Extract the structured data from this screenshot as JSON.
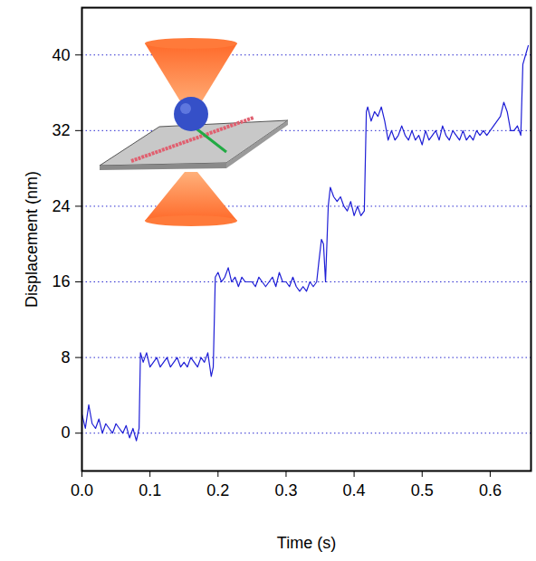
{
  "chart_data": {
    "type": "line",
    "xlabel": "Time (s)",
    "ylabel": "Displacement (nm)",
    "color": "#1f1fd6",
    "grid": true,
    "xlim": [
      0,
      0.66
    ],
    "xticks": [
      {
        "value": 0,
        "label": "0.0"
      },
      {
        "value": 0.1,
        "label": "0.1"
      },
      {
        "value": 0.2,
        "label": "0.2"
      },
      {
        "value": 0.3,
        "label": "0.3"
      },
      {
        "value": 0.4,
        "label": "0.4"
      },
      {
        "value": 0.5,
        "label": "0.5"
      },
      {
        "value": 0.6,
        "label": "0.6"
      }
    ],
    "ylim": [
      -4,
      45
    ],
    "yticks": [
      0,
      8,
      16,
      24,
      32,
      40
    ],
    "x": [
      0,
      0.005,
      0.01,
      0.015,
      0.02,
      0.025,
      0.03,
      0.035,
      0.04,
      0.045,
      0.05,
      0.055,
      0.06,
      0.065,
      0.07,
      0.075,
      0.08,
      0.084,
      0.086,
      0.09,
      0.095,
      0.1,
      0.105,
      0.11,
      0.115,
      0.12,
      0.125,
      0.13,
      0.135,
      0.14,
      0.145,
      0.15,
      0.155,
      0.16,
      0.165,
      0.17,
      0.175,
      0.18,
      0.185,
      0.19,
      0.193,
      0.196,
      0.2,
      0.205,
      0.21,
      0.215,
      0.22,
      0.225,
      0.23,
      0.235,
      0.24,
      0.25,
      0.255,
      0.26,
      0.265,
      0.27,
      0.275,
      0.28,
      0.285,
      0.29,
      0.295,
      0.3,
      0.305,
      0.31,
      0.315,
      0.32,
      0.325,
      0.33,
      0.335,
      0.34,
      0.345,
      0.348,
      0.352,
      0.355,
      0.358,
      0.362,
      0.365,
      0.37,
      0.375,
      0.38,
      0.385,
      0.39,
      0.395,
      0.4,
      0.405,
      0.41,
      0.415,
      0.418,
      0.42,
      0.425,
      0.43,
      0.435,
      0.44,
      0.445,
      0.45,
      0.455,
      0.46,
      0.465,
      0.47,
      0.475,
      0.48,
      0.485,
      0.49,
      0.495,
      0.5,
      0.505,
      0.51,
      0.515,
      0.52,
      0.525,
      0.53,
      0.535,
      0.54,
      0.545,
      0.55,
      0.555,
      0.56,
      0.565,
      0.57,
      0.575,
      0.58,
      0.585,
      0.59,
      0.595,
      0.6,
      0.605,
      0.61,
      0.615,
      0.62,
      0.625,
      0.63,
      0.635,
      0.64,
      0.645,
      0.648,
      0.652,
      0.656
    ],
    "values": [
      2,
      0.5,
      3,
      1,
      0.5,
      1.5,
      0,
      1,
      0.5,
      0,
      1,
      0.5,
      0,
      0.8,
      -0.5,
      0.5,
      -0.8,
      0.5,
      8.5,
      7.5,
      8.5,
      7,
      7.5,
      8,
      7,
      7.5,
      8,
      7,
      7.5,
      8,
      7,
      7.5,
      7,
      8,
      7.5,
      7,
      8,
      7.5,
      8.5,
      6,
      7,
      16.5,
      17,
      16,
      16.5,
      17.5,
      16,
      16.5,
      15.5,
      16.5,
      16,
      16,
      15.5,
      16.5,
      16,
      15.5,
      16,
      16.5,
      15.5,
      17,
      16,
      16,
      15.5,
      16.5,
      15.5,
      15,
      15.5,
      15,
      16,
      15.5,
      16,
      18,
      20.5,
      20,
      16,
      24,
      26,
      25,
      24.5,
      25,
      24,
      23.5,
      24.5,
      23,
      24,
      23,
      23.5,
      34,
      34.5,
      33,
      34,
      33.5,
      34.5,
      33,
      31,
      32,
      31,
      31.5,
      32.5,
      31.5,
      31,
      32,
      31,
      31.5,
      30.5,
      32,
      31,
      31.5,
      32,
      31,
      32.5,
      31.5,
      31,
      32,
      31.5,
      31,
      32,
      31,
      31.5,
      31,
      32,
      31.5,
      32,
      31.5,
      32,
      32.5,
      33,
      33.5,
      35,
      34,
      32,
      32,
      32.5,
      31.5,
      39,
      40,
      41
    ]
  }
}
